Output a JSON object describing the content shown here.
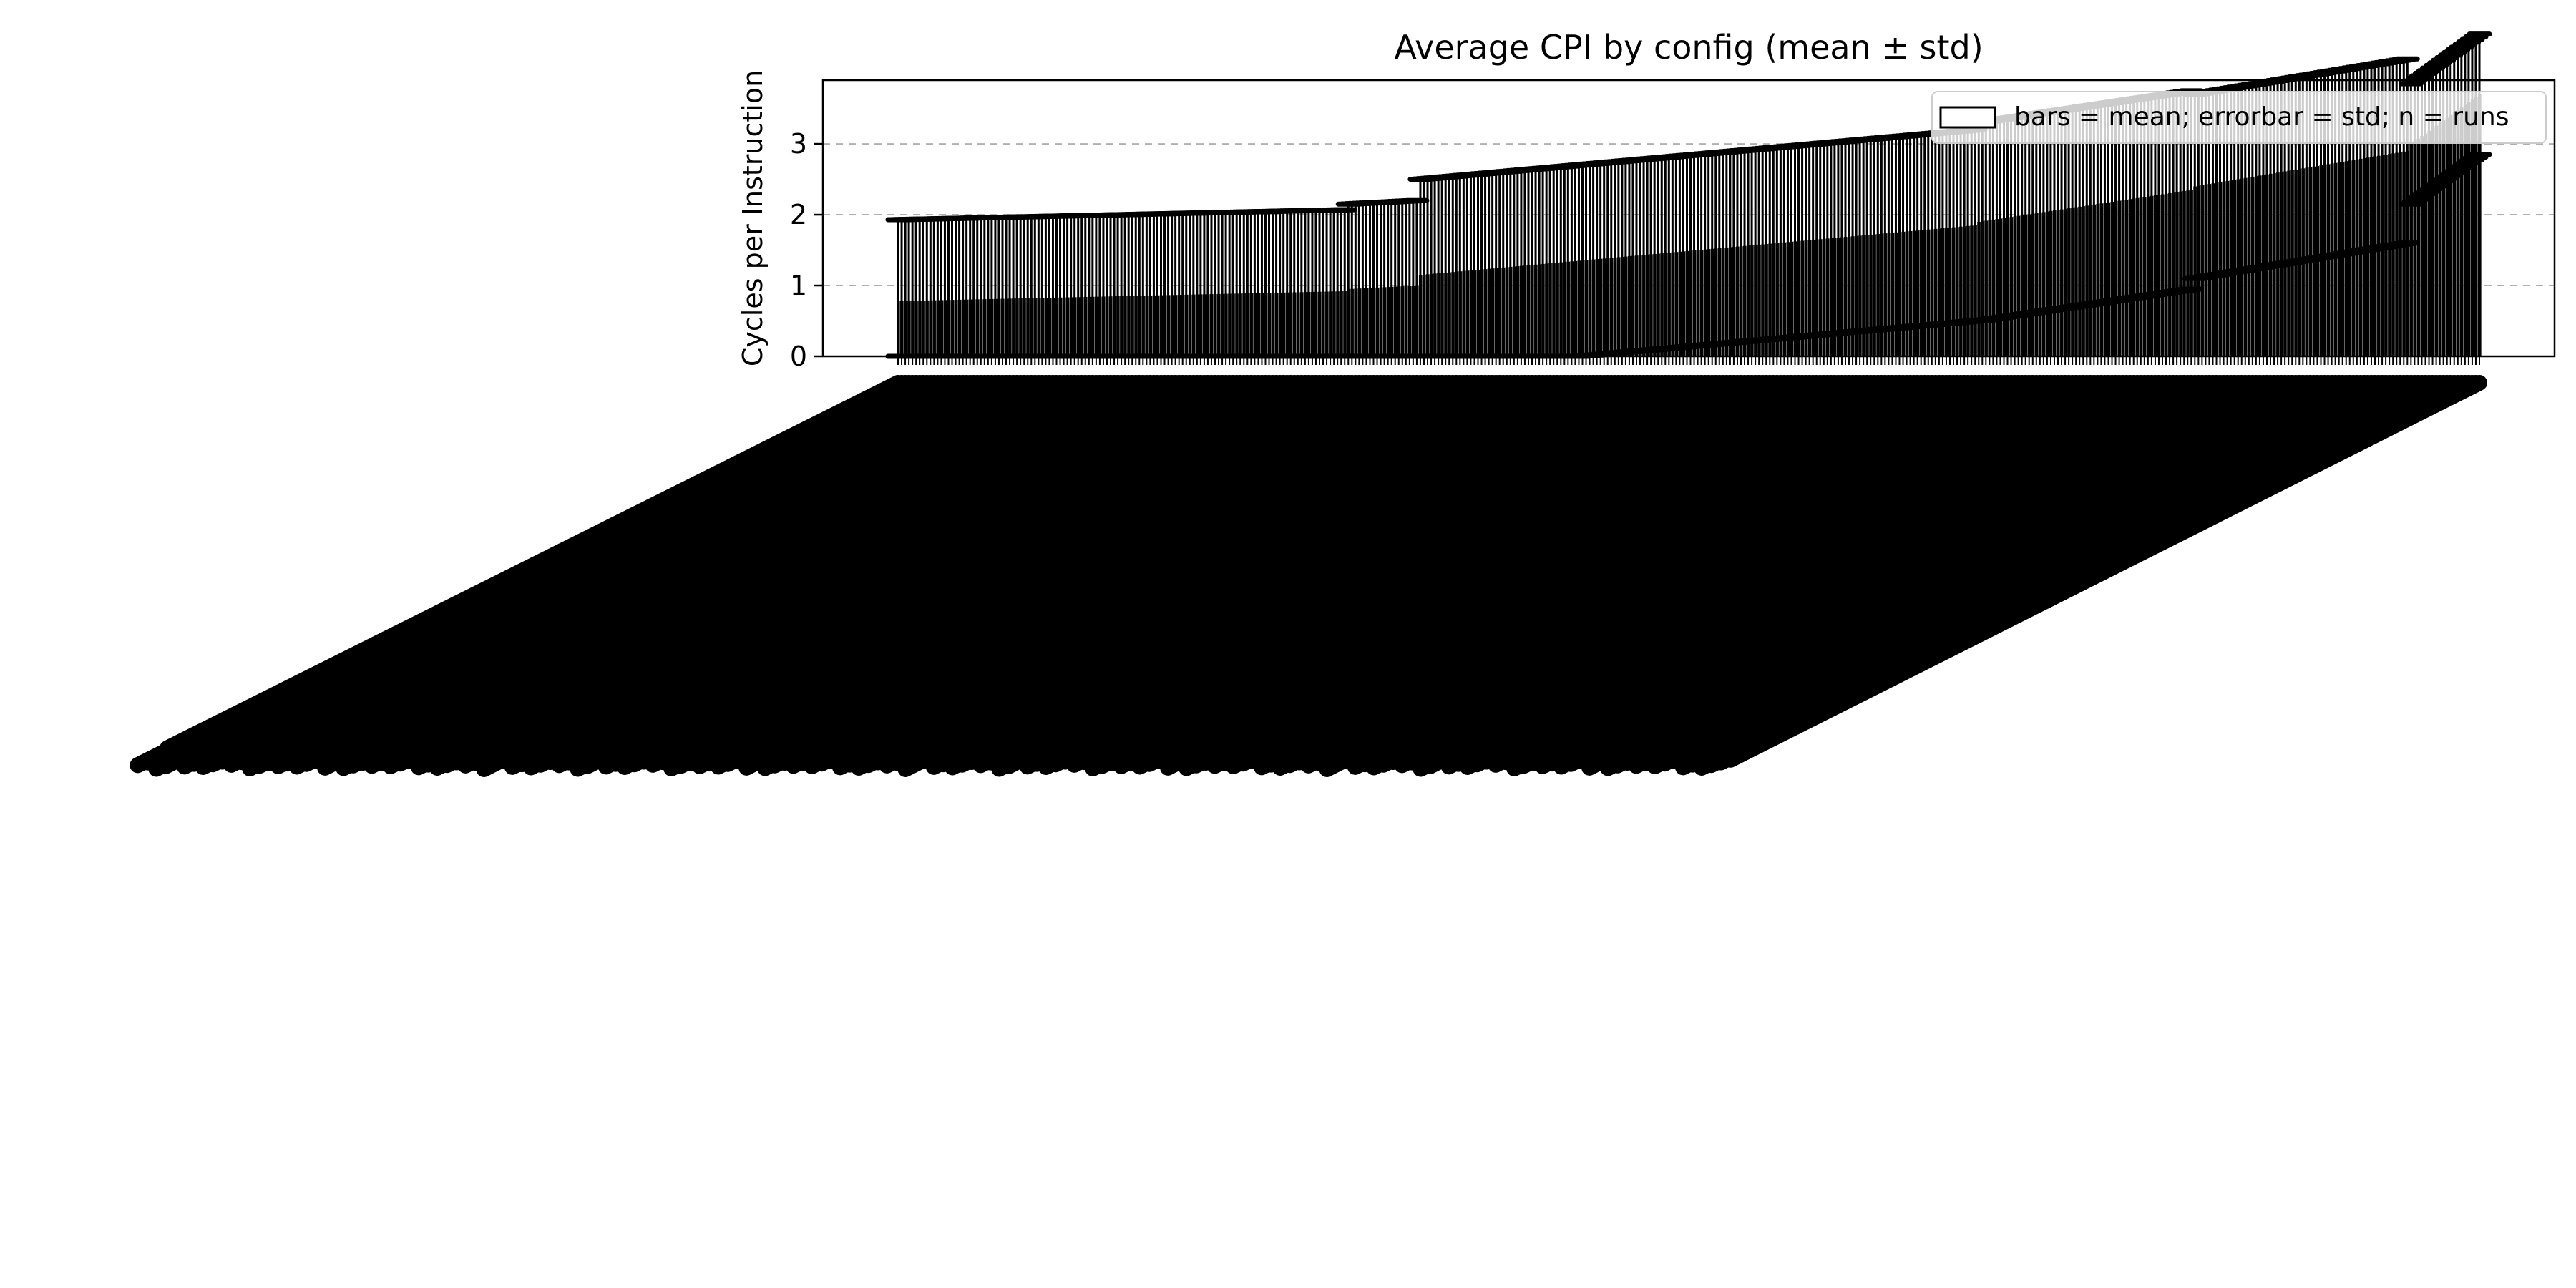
{
  "chart_data": {
    "type": "bar",
    "title": "Average CPI by config (mean ± std)",
    "ylabel": "Cycles per Instruction",
    "xlabel": "",
    "ylim": [
      0,
      3.9
    ],
    "yticks": [
      0,
      1,
      2,
      3
    ],
    "grid": {
      "axis": "y",
      "style": "dashed"
    },
    "legend": {
      "entries": [
        "bars = mean; errorbar = std; n = runs"
      ],
      "placement": "upper right"
    },
    "tick_label_rotation_deg": -45,
    "categories_note": "Several hundred config tick labels are printed stacked on top of each other and cannot be read",
    "n_bars": 440,
    "segments": [
      {
        "from": 0,
        "to": 125,
        "mean_start": 0.78,
        "mean_end": 0.92,
        "std": 1.15
      },
      {
        "from": 125,
        "to": 145,
        "mean_start": 0.95,
        "mean_end": 1.0,
        "std": 1.2
      },
      {
        "from": 145,
        "to": 300,
        "mean_start": 1.15,
        "mean_end": 1.85,
        "std": 1.35
      },
      {
        "from": 300,
        "to": 360,
        "mean_start": 1.9,
        "mean_end": 2.35,
        "std": 1.4
      },
      {
        "from": 360,
        "to": 420,
        "mean_start": 2.4,
        "mean_end": 2.9,
        "std": 1.3
      },
      {
        "from": 420,
        "to": 440,
        "mean_start": 3.0,
        "mean_end": 3.7,
        "std": 0.85
      }
    ]
  }
}
